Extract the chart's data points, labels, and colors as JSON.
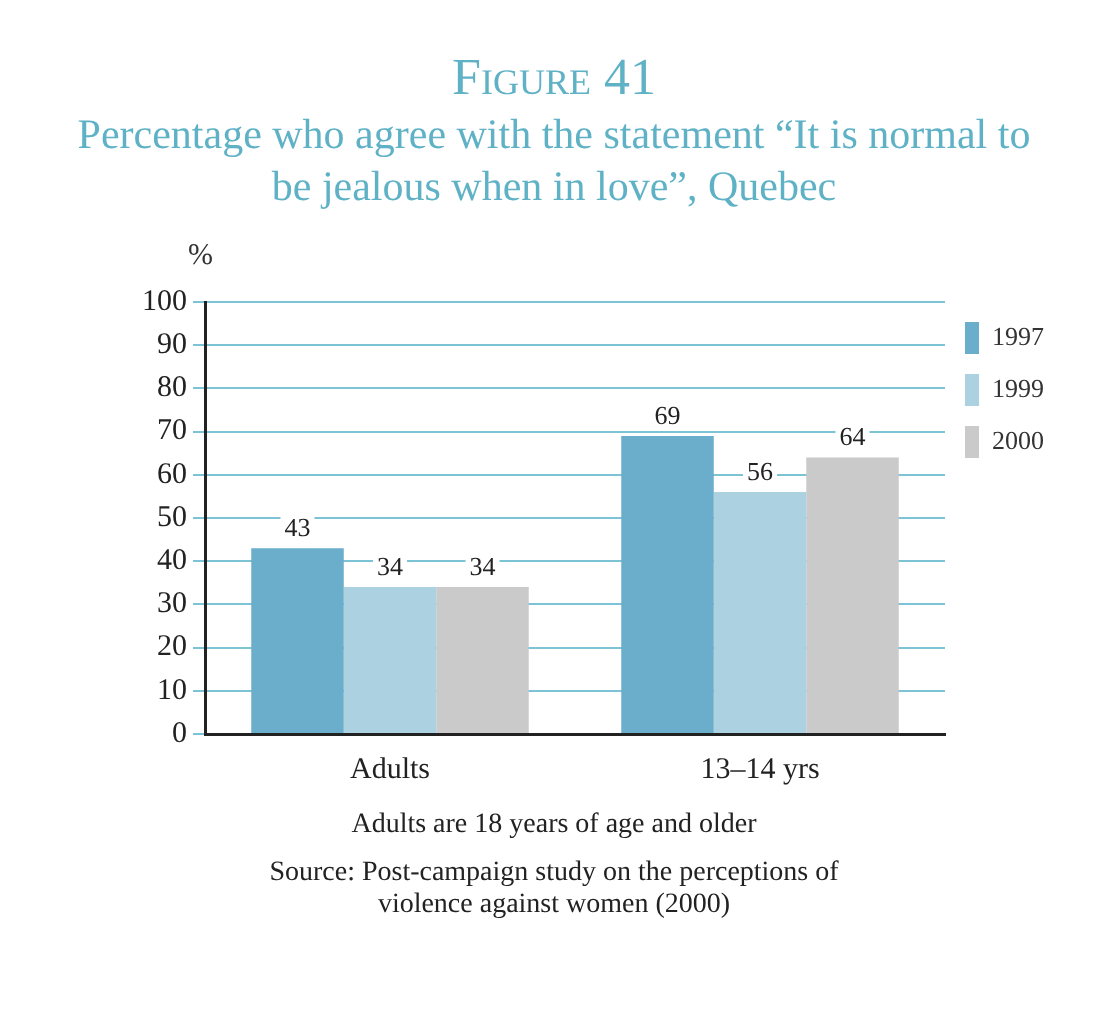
{
  "chart_data": {
    "type": "bar",
    "title": "Figure 41",
    "subtitle": "Percentage who agree with the statement “It is normal to be jealous when in love”, Quebec",
    "ylabel": "%",
    "categories": [
      "Adults",
      "13–14 yrs"
    ],
    "series": [
      {
        "name": "1997",
        "color": "#6aaecb",
        "values": [
          43,
          69
        ]
      },
      {
        "name": "1999",
        "color": "#acd2e2",
        "values": [
          34,
          56
        ]
      },
      {
        "name": "2000",
        "color": "#cacaca",
        "values": [
          34,
          64
        ]
      }
    ],
    "ylim": [
      0,
      100
    ],
    "yticks": [
      0,
      10,
      20,
      30,
      40,
      50,
      60,
      70,
      80,
      90,
      100
    ],
    "grid": "y",
    "legend": "top right",
    "data_labels": true,
    "annotations": [
      "Adults are 18 years of age and older",
      "Source: Post-campaign study on the perceptions of violence against women (2000)"
    ]
  }
}
